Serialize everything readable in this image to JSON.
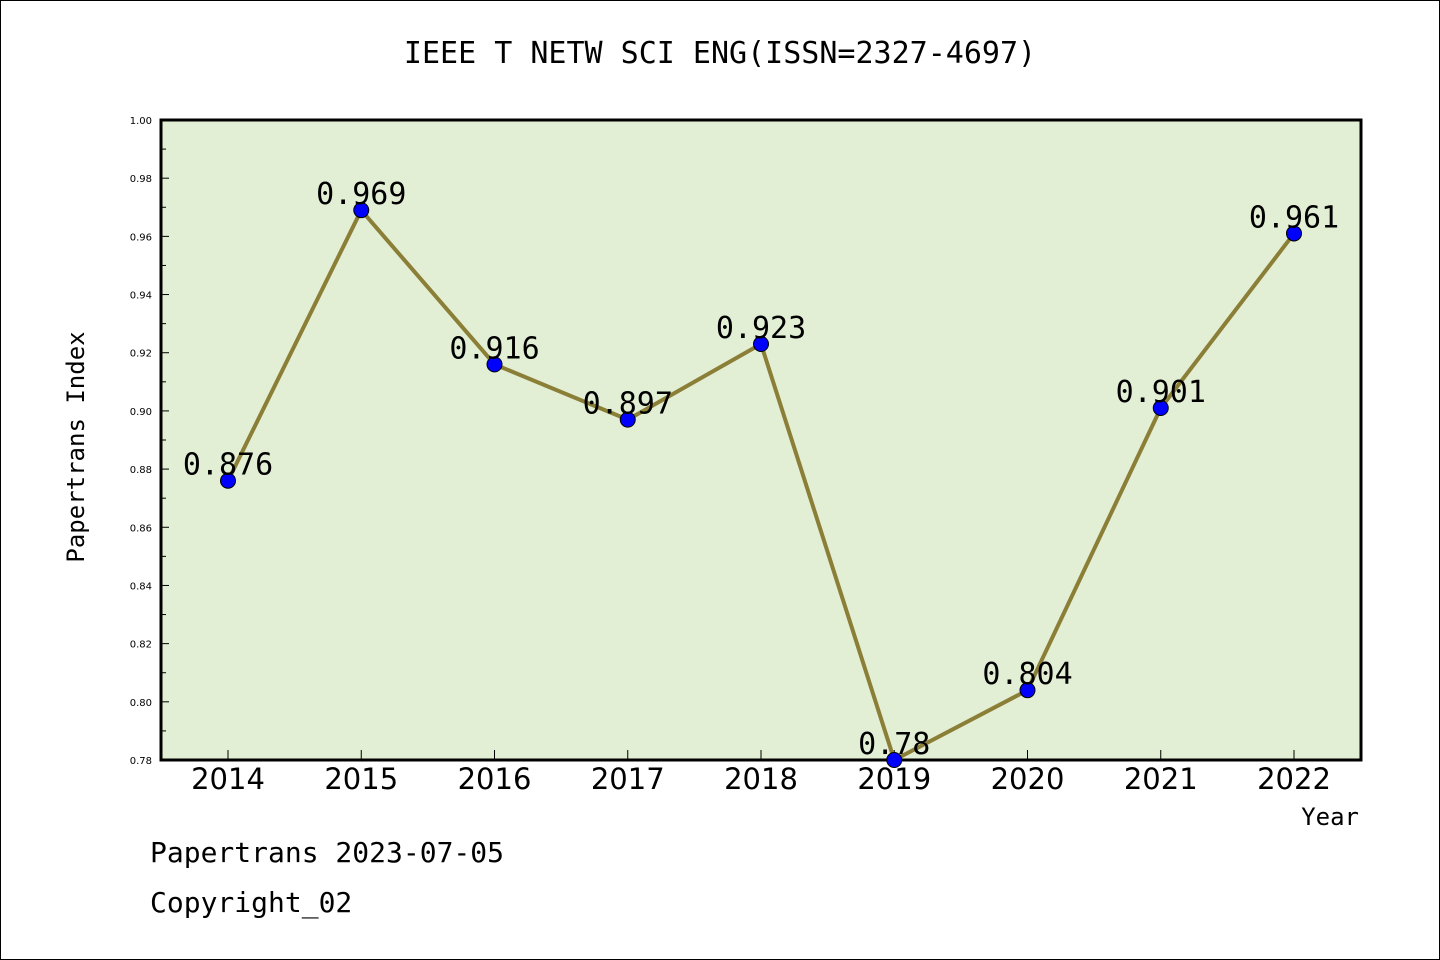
{
  "footer": {
    "line1": "Papertrans 2023-07-05",
    "line2": "Copyright_02"
  },
  "colors": {
    "plot_background": "#e2efd5",
    "line": "#8b7e36",
    "marker": "#0000ff"
  },
  "chart_data": {
    "type": "line",
    "title": "IEEE T NETW SCI ENG(ISSN=2327-4697)",
    "xlabel": "Year",
    "ylabel": "Papertrans Index",
    "categories": [
      "2014",
      "2015",
      "2016",
      "2017",
      "2018",
      "2019",
      "2020",
      "2021",
      "2022"
    ],
    "series": [
      {
        "values": [
          0.876,
          0.969,
          0.916,
          0.897,
          0.923,
          0.78,
          0.804,
          0.901,
          0.961
        ],
        "labels": [
          "0.876",
          "0.969",
          "0.916",
          "0.897",
          "0.923",
          "0.78",
          "0.804",
          "0.901",
          "0.961"
        ]
      }
    ],
    "ylim": [
      0.78,
      1.0
    ],
    "yticks": [
      "0.78",
      "0.80",
      "0.82",
      "0.84",
      "0.86",
      "0.88",
      "0.90",
      "0.92",
      "0.94",
      "0.96",
      "0.98",
      "1.00"
    ],
    "grid": false,
    "legend": "none"
  }
}
